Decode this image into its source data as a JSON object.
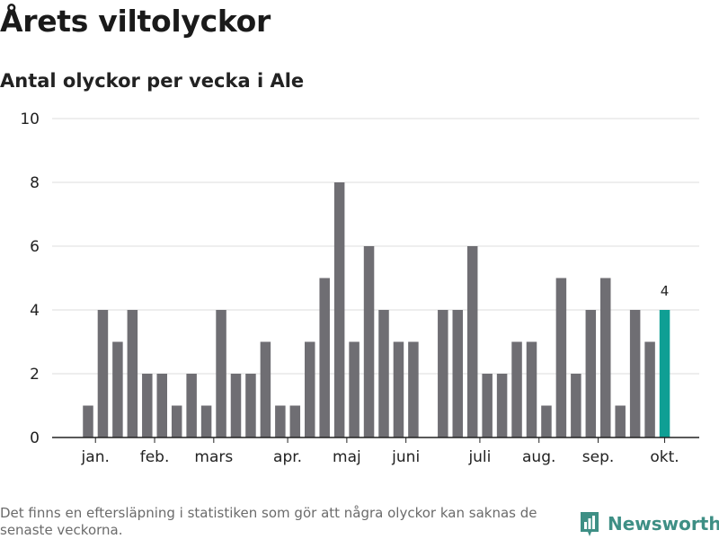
{
  "title": "Årets viltolyckor",
  "subtitle": "Antal olyckor per vecka i Ale",
  "footnote": "Det finns en eftersläpning i statistiken som gör att några olyckor kan saknas de senaste veckorna.",
  "brand": {
    "name": "Newsworthy",
    "icon": "newsworthy-logo-icon",
    "color": "#3e8f85"
  },
  "chart_data": {
    "type": "bar",
    "x": [
      1,
      2,
      3,
      4,
      5,
      6,
      7,
      8,
      9,
      10,
      11,
      12,
      13,
      14,
      15,
      16,
      17,
      18,
      19,
      20,
      21,
      22,
      23,
      24,
      25,
      26,
      27,
      28,
      29,
      30,
      31,
      32,
      33,
      34,
      35,
      36,
      37,
      38,
      39,
      40
    ],
    "values": [
      1,
      4,
      3,
      4,
      2,
      2,
      1,
      2,
      1,
      4,
      2,
      2,
      3,
      1,
      1,
      3,
      5,
      8,
      3,
      6,
      4,
      3,
      3,
      null,
      4,
      4,
      6,
      2,
      2,
      3,
      3,
      1,
      5,
      2,
      4,
      5,
      1,
      4,
      3,
      4
    ],
    "highlight_index": 39,
    "highlight_label": "4",
    "ylim": [
      0,
      10
    ],
    "yticks": [
      0,
      2,
      4,
      6,
      8,
      10
    ],
    "xticks": [
      {
        "label": "jan.",
        "at": 1.5
      },
      {
        "label": "feb.",
        "at": 5.5
      },
      {
        "label": "mars",
        "at": 9.5
      },
      {
        "label": "apr.",
        "at": 14.5
      },
      {
        "label": "maj",
        "at": 18.5
      },
      {
        "label": "juni",
        "at": 22.5
      },
      {
        "label": "juli",
        "at": 27.5
      },
      {
        "label": "aug.",
        "at": 31.5
      },
      {
        "label": "sep.",
        "at": 35.5
      },
      {
        "label": "okt.",
        "at": 40
      }
    ],
    "grid": true,
    "colors": {
      "bar": "#6f6e73",
      "highlight": "#0f9f94",
      "grid": "#dcdcdc",
      "axis": "#222222"
    }
  }
}
